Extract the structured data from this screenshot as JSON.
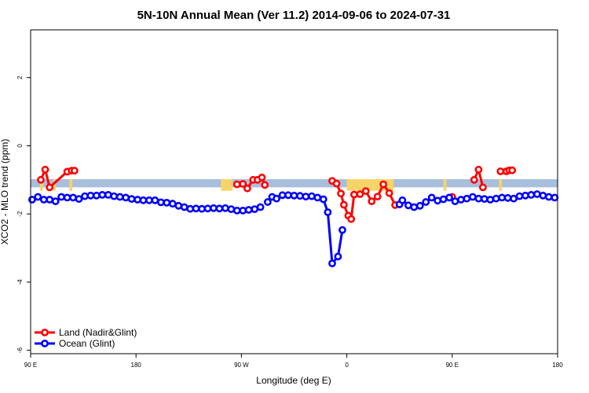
{
  "chart_data": {
    "type": "line",
    "title": "5N-10N Annual Mean (Ver 11.2)   2014-09-06 to 2024-07-31",
    "xlabel": "Longitude (deg E)",
    "ylabel": "XCO2 - MLO trend (ppm)",
    "xlim": [
      -180,
      180
    ],
    "ylim": [
      -6.1,
      3.4
    ],
    "x_ticks": [
      {
        "value": -180,
        "label": "90 E"
      },
      {
        "value": -108,
        "label": "180"
      },
      {
        "value": -36,
        "label": "90 W"
      },
      {
        "value": 36,
        "label": "0"
      },
      {
        "value": 108,
        "label": "90 E"
      },
      {
        "value": 180,
        "label": "180"
      }
    ],
    "y_ticks": [
      {
        "value": 2,
        "label": "2"
      },
      {
        "value": 0,
        "label": "0"
      },
      {
        "value": -2,
        "label": "-2"
      },
      {
        "value": -4,
        "label": "-4"
      },
      {
        "value": -6,
        "label": "-6"
      }
    ],
    "reference_band": {
      "y_min": -1.22,
      "y_max": -0.98,
      "color": "#a8bedd"
    },
    "highlight_band": {
      "y_min": -1.32,
      "y_max": -0.98,
      "color": "#f8d468",
      "ranges": [
        [
          -173.5,
          -171.5
        ],
        [
          -164.5,
          -163
        ],
        [
          -153.5,
          -151.5
        ],
        [
          -50,
          -42
        ],
        [
          36,
          68
        ],
        [
          102,
          104
        ],
        [
          140,
          142
        ]
      ]
    },
    "legend": {
      "position": "bottom-left"
    },
    "series": [
      {
        "name": "Land (Nadir&Glint)",
        "color": "#ff0000",
        "segments": [
          [
            [
              -173,
              -1.0
            ],
            [
              -170,
              -0.7
            ],
            [
              -167,
              -1.22
            ],
            [
              -155,
              -0.76
            ],
            [
              -152,
              -0.73
            ],
            [
              -150,
              -0.73
            ]
          ],
          [
            [
              -39,
              -1.13
            ],
            [
              -35,
              -1.12
            ],
            [
              -32,
              -1.25
            ],
            [
              -28,
              -1.0
            ],
            [
              -25,
              -1.0
            ],
            [
              -22,
              -0.93
            ],
            [
              -20,
              -1.15
            ]
          ],
          [
            [
              26,
              -1.03
            ],
            [
              29,
              -1.11
            ],
            [
              32,
              -1.4
            ],
            [
              34,
              -1.73
            ],
            [
              37,
              -2.05
            ],
            [
              39,
              -2.15
            ],
            [
              41,
              -1.43
            ],
            [
              45,
              -1.42
            ],
            [
              49,
              -1.33
            ],
            [
              53,
              -1.63
            ],
            [
              57,
              -1.49
            ],
            [
              61,
              -1.13
            ],
            [
              65,
              -1.39
            ],
            [
              69,
              -1.74
            ],
            [
              72,
              -1.72
            ]
          ],
          [
            [
              123,
              -1.0
            ],
            [
              126,
              -0.7
            ],
            [
              129,
              -1.22
            ]
          ],
          [
            [
              141,
              -0.75
            ],
            [
              145,
              -0.75
            ],
            [
              147,
              -0.72
            ],
            [
              149,
              -0.72
            ]
          ],
          [
            [
              108,
              -1.5
            ]
          ]
        ]
      },
      {
        "name": "Ocean (Glint)",
        "color": "#0000ff",
        "segments": [
          [
            [
              -179,
              -1.58
            ],
            [
              -175,
              -1.5
            ],
            [
              -171,
              -1.58
            ],
            [
              -167,
              -1.58
            ],
            [
              -163,
              -1.63
            ],
            [
              -159,
              -1.5
            ],
            [
              -155,
              -1.52
            ],
            [
              -151,
              -1.52
            ],
            [
              -147,
              -1.56
            ],
            [
              -143,
              -1.48
            ],
            [
              -139,
              -1.46
            ],
            [
              -135,
              -1.46
            ],
            [
              -131,
              -1.44
            ],
            [
              -127,
              -1.44
            ],
            [
              -123,
              -1.48
            ],
            [
              -119,
              -1.5
            ],
            [
              -115,
              -1.52
            ],
            [
              -111,
              -1.56
            ],
            [
              -107,
              -1.58
            ],
            [
              -103,
              -1.6
            ],
            [
              -99,
              -1.6
            ],
            [
              -95,
              -1.6
            ],
            [
              -91,
              -1.66
            ],
            [
              -87,
              -1.67
            ],
            [
              -83,
              -1.7
            ],
            [
              -79,
              -1.76
            ],
            [
              -75,
              -1.8
            ],
            [
              -71,
              -1.85
            ],
            [
              -67,
              -1.84
            ],
            [
              -63,
              -1.85
            ],
            [
              -59,
              -1.84
            ],
            [
              -55,
              -1.83
            ],
            [
              -51,
              -1.84
            ],
            [
              -47,
              -1.83
            ],
            [
              -43,
              -1.86
            ],
            [
              -39,
              -1.9
            ],
            [
              -35,
              -1.9
            ],
            [
              -31,
              -1.88
            ],
            [
              -27,
              -1.86
            ],
            [
              -23,
              -1.8
            ]
          ],
          [
            [
              -18,
              -1.65
            ],
            [
              -15,
              -1.5
            ],
            [
              -12,
              -1.55
            ],
            [
              -8,
              -1.45
            ],
            [
              -4,
              -1.45
            ],
            [
              0,
              -1.46
            ],
            [
              4,
              -1.47
            ],
            [
              8,
              -1.49
            ],
            [
              12,
              -1.48
            ],
            [
              16,
              -1.52
            ],
            [
              20,
              -1.57
            ],
            [
              23,
              -1.95
            ],
            [
              26,
              -3.45
            ],
            [
              30,
              -3.25
            ],
            [
              33,
              -2.47
            ]
          ],
          [
            [
              72,
              -1.72
            ],
            [
              74,
              -1.6
            ],
            [
              78,
              -1.75
            ],
            [
              82,
              -1.8
            ],
            [
              86,
              -1.76
            ],
            [
              90,
              -1.65
            ],
            [
              94,
              -1.52
            ],
            [
              98,
              -1.61
            ],
            [
              102,
              -1.57
            ],
            [
              106,
              -1.52
            ],
            [
              110,
              -1.63
            ],
            [
              114,
              -1.58
            ],
            [
              118,
              -1.55
            ],
            [
              122,
              -1.5
            ],
            [
              126,
              -1.55
            ],
            [
              130,
              -1.56
            ],
            [
              134,
              -1.58
            ],
            [
              138,
              -1.55
            ],
            [
              142,
              -1.52
            ],
            [
              146,
              -1.53
            ],
            [
              150,
              -1.55
            ],
            [
              154,
              -1.48
            ],
            [
              158,
              -1.46
            ],
            [
              162,
              -1.44
            ],
            [
              166,
              -1.42
            ],
            [
              170,
              -1.46
            ],
            [
              174,
              -1.5
            ],
            [
              178,
              -1.52
            ]
          ]
        ]
      }
    ]
  }
}
